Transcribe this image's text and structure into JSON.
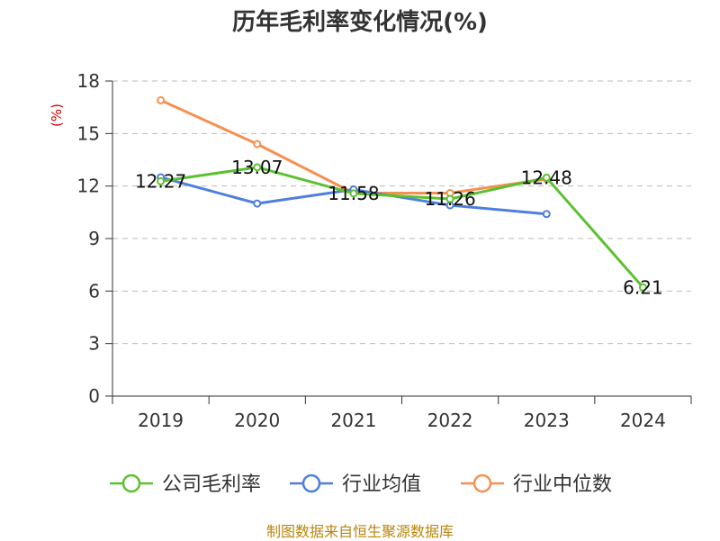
{
  "chart_data": {
    "type": "line",
    "title": "历年毛利率变化情况(%)",
    "ylabel": "(%)",
    "xlabel": "",
    "categories": [
      "2019",
      "2020",
      "2021",
      "2022",
      "2023",
      "2024"
    ],
    "ylim": [
      0,
      18
    ],
    "yticks": [
      0,
      3,
      6,
      9,
      12,
      15,
      18
    ],
    "grid": true,
    "legend_position": "bottom",
    "series": [
      {
        "name": "公司毛利率",
        "color": "#5cc130",
        "values": [
          12.27,
          13.07,
          11.58,
          11.26,
          12.48,
          6.21
        ],
        "show_labels": true
      },
      {
        "name": "行业均值",
        "color": "#4e7fdc",
        "values": [
          12.5,
          11.0,
          11.8,
          10.9,
          10.4,
          null
        ],
        "show_labels": false
      },
      {
        "name": "行业中位数",
        "color": "#f59052",
        "values": [
          16.9,
          14.4,
          11.6,
          11.6,
          12.4,
          null
        ],
        "show_labels": false
      }
    ]
  },
  "source_note": "制图数据来自恒生聚源数据库"
}
